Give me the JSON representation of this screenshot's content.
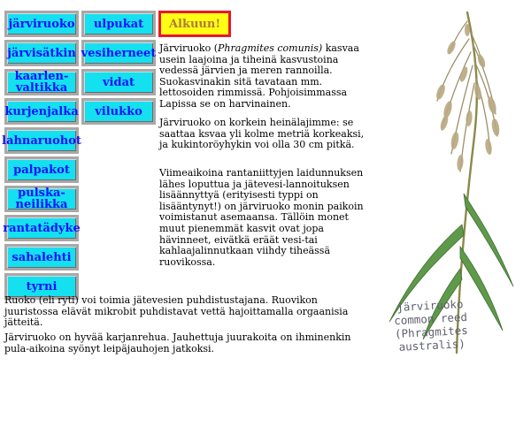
{
  "nav": {
    "left_column": [
      {
        "label": "järviruoko"
      },
      {
        "label": "järvisätkin"
      },
      {
        "label": "kaarlen-\nvaltikka"
      },
      {
        "label": "kurjenjalka"
      },
      {
        "label": "lahnaruohot"
      },
      {
        "label": "palpakot"
      },
      {
        "label": "pulska-\nneilikka"
      },
      {
        "label": "rantatädyke"
      },
      {
        "label": "sahalehti"
      },
      {
        "label": "tyrni"
      }
    ],
    "right_column": [
      {
        "label": "ulpukat"
      },
      {
        "label": "vesiherneet"
      },
      {
        "label": "vidat"
      },
      {
        "label": "vilukko"
      }
    ],
    "start_label": "Alkuun!"
  },
  "colors": {
    "button_bg": "#14e0f0",
    "button_text": "#1010ff",
    "start_bg": "#ffff14",
    "start_border": "#e8182a",
    "start_text": "#b07a3a"
  },
  "content": {
    "p1_before": "Järviruoko (",
    "p1_latin": "Phragmites comunis)",
    "p1_after": " kasvaa usein laajoina ja tiheinä kasvustoina vedessä järvien ja meren rannoilla. Suokasvinakin sitä tavataan mm. lettosoiden rimmissä. Pohjoisimmassa Lapissa se on harvinainen.",
    "p2": "Järviruoko on korkein heinälajimme:  se saattaa ksvaa yli kolme metriä korkeaksi, ja kukintoröyhykin voi olla 30 cm pitkä.",
    "p3": "Viimeaikoina rantaniittyjen laidunnuksen lähes loputtua ja jätevesi-lannoituksen lisäännyttyä (erityisesti typpi on lisääntynyt!) on järviruoko monin paikoin voimistanut asemaansa. Tällöin monet muut pienemmät kasvit ovat jopa hävinneet, eivätkä eräät vesi-tai kahlaajalinnutkaan viihdy  tiheässä ruovikossa.",
    "p4": "Ruoko (eli ryti) voi toimia jätevesien puhdistustajana. Ruovikon juuristossa elävät mikrobit puhdistavat vettä hajoittamalla orgaanisia jätteitä.",
    "p5": "Järviruoko on hyvää karjanrehua. Jauhettuja juurakoita on ihminenkin pula-aikoina syönyt leipäjauhojen  jatkoksi."
  },
  "illustration": {
    "caption_line1": "järviruoko",
    "caption_line2": "common reed",
    "caption_line3": "(Phragmites",
    "caption_line4": "australis)"
  }
}
